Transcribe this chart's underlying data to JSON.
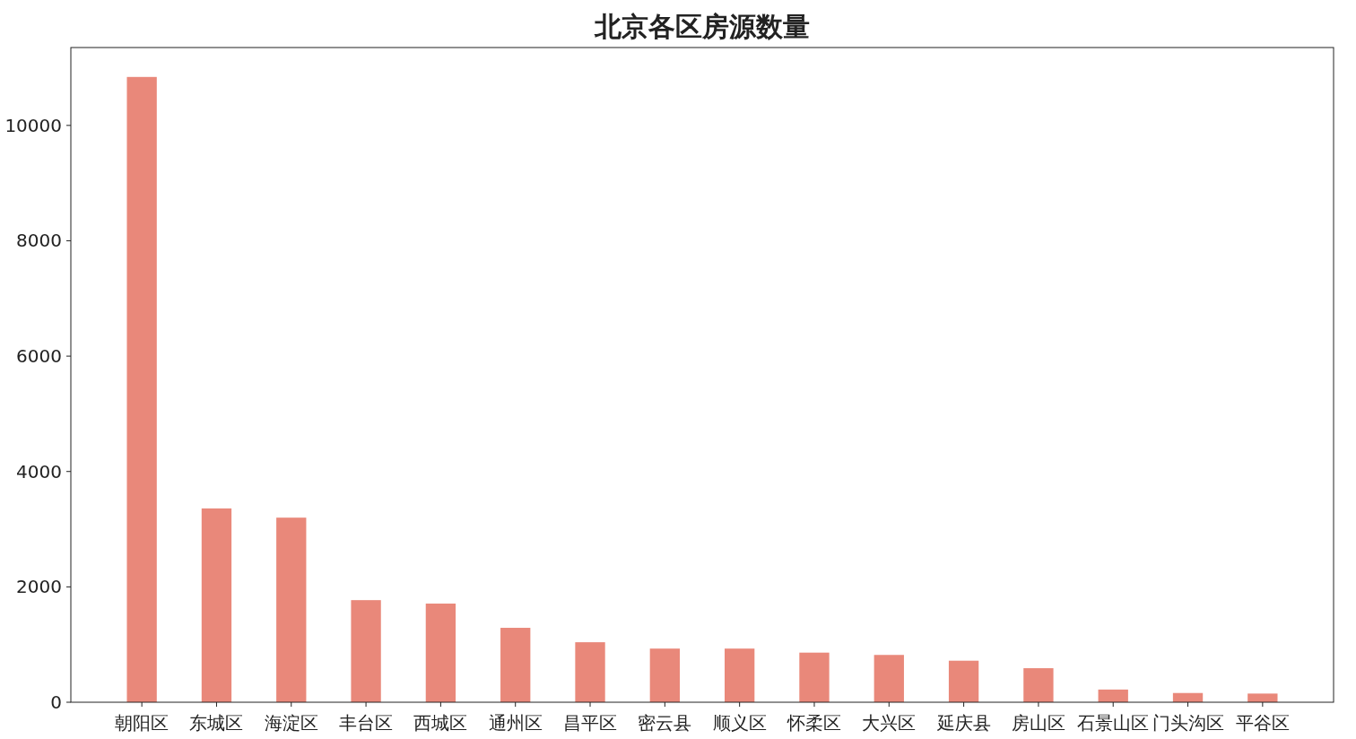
{
  "chart_data": {
    "type": "bar",
    "title": "北京各区房源数量",
    "categories": [
      "朝阳区",
      "东城区",
      "海淀区",
      "丰台区",
      "西城区",
      "通州区",
      "昌平区",
      "密云县",
      "顺义区",
      "怀柔区",
      "大兴区",
      "延庆县",
      "房山区",
      "石景山区",
      "门头沟区",
      "平谷区"
    ],
    "values": [
      10840,
      3360,
      3200,
      1770,
      1710,
      1290,
      1040,
      930,
      930,
      860,
      820,
      720,
      590,
      220,
      160,
      150
    ],
    "color": "#e9887a",
    "ylim": [
      0,
      11350
    ],
    "yticks": [
      0,
      2000,
      4000,
      6000,
      8000,
      10000
    ],
    "grid": false
  }
}
